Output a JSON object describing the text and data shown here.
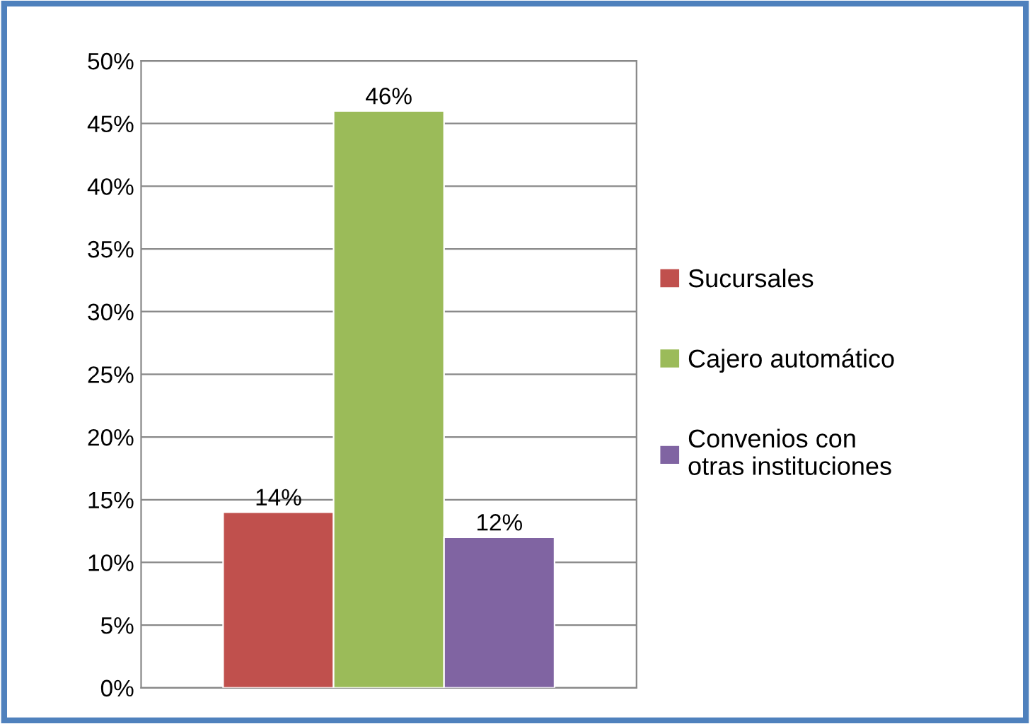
{
  "chart_data": {
    "type": "bar",
    "categories": [
      null
    ],
    "series": [
      {
        "name": "Sucursales",
        "color": "#c0504d",
        "values": [
          14
        ],
        "value_labels": [
          "14%"
        ]
      },
      {
        "name": "Cajero automático",
        "color": "#9bbb59",
        "values": [
          46
        ],
        "value_labels": [
          "46%"
        ]
      },
      {
        "name": "Convenios con\notras instituciones",
        "color": "#8064a2",
        "values": [
          12
        ],
        "value_labels": [
          "12%"
        ]
      }
    ],
    "ylim": [
      0,
      50
    ],
    "yticks": [
      {
        "value": 0,
        "label": "0%"
      },
      {
        "value": 5,
        "label": "5%"
      },
      {
        "value": 10,
        "label": "10%"
      },
      {
        "value": 15,
        "label": "15%"
      },
      {
        "value": 20,
        "label": "20%"
      },
      {
        "value": 25,
        "label": "25%"
      },
      {
        "value": 30,
        "label": "30%"
      },
      {
        "value": 35,
        "label": "35%"
      },
      {
        "value": 40,
        "label": "40%"
      },
      {
        "value": 45,
        "label": "45%"
      },
      {
        "value": 50,
        "label": "50%"
      }
    ],
    "grid": "y",
    "legend": "right"
  }
}
